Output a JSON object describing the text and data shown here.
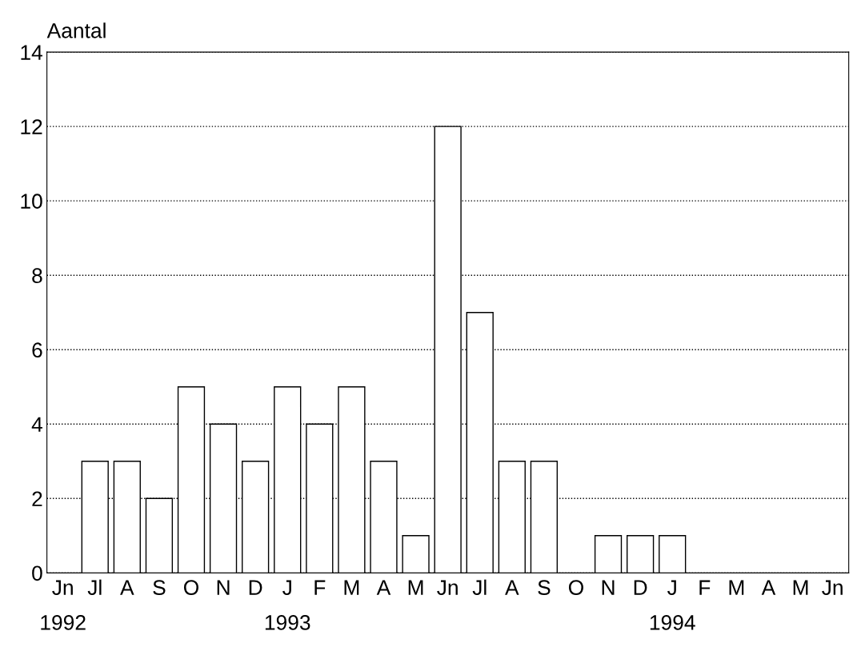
{
  "chart_data": {
    "type": "bar",
    "ylabel": "Aantal",
    "categories": [
      "Jn\n1992",
      "Jl",
      "A",
      "S",
      "O",
      "N",
      "D",
      "J\n1993",
      "F",
      "M",
      "A",
      "M",
      "Jn",
      "Jl",
      "A",
      "S",
      "O",
      "N",
      "D",
      "J\n1994",
      "F",
      "M",
      "A",
      "M",
      "Jn"
    ],
    "values": [
      0,
      3,
      3,
      2,
      5,
      4,
      3,
      5,
      4,
      5,
      3,
      1,
      12,
      7,
      3,
      3,
      0,
      1,
      1,
      1,
      0,
      0,
      0,
      0,
      0
    ],
    "color": "#ffffff",
    "ylim": [
      0,
      14
    ],
    "yticks": [
      0,
      2,
      4,
      6,
      8,
      10,
      12,
      14
    ],
    "grid": "y",
    "line_style": "dotted",
    "legend": false
  }
}
